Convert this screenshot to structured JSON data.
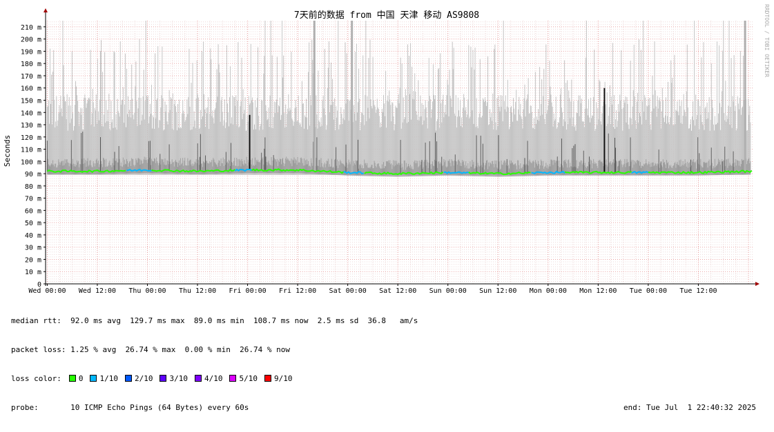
{
  "chart_data": {
    "type": "line",
    "title": "7天前的数据 from 中国 天津 移动 AS9808",
    "ylabel": "Seconds",
    "ylim": [
      0,
      215
    ],
    "y_ticks": [
      0,
      10,
      20,
      30,
      40,
      50,
      60,
      70,
      80,
      90,
      100,
      110,
      120,
      130,
      140,
      150,
      160,
      170,
      180,
      190,
      200,
      210
    ],
    "y_tick_labels": [
      "0",
      "10 m",
      "20 m",
      "30 m",
      "40 m",
      "50 m",
      "60 m",
      "70 m",
      "80 m",
      "90 m",
      "100 m",
      "110 m",
      "120 m",
      "130 m",
      "140 m",
      "150 m",
      "160 m",
      "170 m",
      "180 m",
      "190 m",
      "200 m",
      "210 m"
    ],
    "x_tick_labels": [
      "Wed 00:00",
      "Wed 12:00",
      "Thu 00:00",
      "Thu 12:00",
      "Fri 00:00",
      "Fri 12:00",
      "Sat 00:00",
      "Sat 12:00",
      "Sun 00:00",
      "Sun 12:00",
      "Mon 00:00",
      "Mon 12:00",
      "Tue 00:00",
      "Tue 12:00"
    ],
    "x_tick_hours": [
      0,
      12,
      24,
      36,
      48,
      60,
      72,
      84,
      96,
      108,
      120,
      132,
      144,
      156
    ],
    "x_range_hours": [
      -0.4,
      169
    ],
    "grid": true,
    "watermark": "RRDTOOL / TOBI OETIKER",
    "median_profile": [
      {
        "hour": 0,
        "value": 92
      },
      {
        "hour": 12,
        "value": 92
      },
      {
        "hour": 24,
        "value": 93
      },
      {
        "hour": 36,
        "value": 92
      },
      {
        "hour": 48,
        "value": 93
      },
      {
        "hour": 60,
        "value": 93
      },
      {
        "hour": 72,
        "value": 91
      },
      {
        "hour": 84,
        "value": 90
      },
      {
        "hour": 96,
        "value": 91
      },
      {
        "hour": 108,
        "value": 90
      },
      {
        "hour": 120,
        "value": 91
      },
      {
        "hour": 132,
        "value": 91
      },
      {
        "hour": 144,
        "value": 91
      },
      {
        "hour": 156,
        "value": 91
      },
      {
        "hour": 169,
        "value": 92
      }
    ],
    "smoke_band": {
      "min": 89,
      "typical_max": 140
    },
    "spikes": [
      {
        "hour": 48.5,
        "value": 138
      },
      {
        "hour": 133.5,
        "value": 160
      },
      {
        "hour": 167.2,
        "value": 215
      },
      {
        "hour": 64,
        "value": 215
      },
      {
        "hour": 73,
        "value": 215
      }
    ],
    "loss_color_segments": [
      {
        "from": 0,
        "to": 19,
        "loss": "0"
      },
      {
        "from": 19,
        "to": 25,
        "loss": "1/10"
      },
      {
        "from": 25,
        "to": 45,
        "loss": "0"
      },
      {
        "from": 45,
        "to": 49,
        "loss": "1/10"
      },
      {
        "from": 49,
        "to": 71,
        "loss": "0"
      },
      {
        "from": 71,
        "to": 76,
        "loss": "1/10"
      },
      {
        "from": 76,
        "to": 95,
        "loss": "0"
      },
      {
        "from": 95,
        "to": 101,
        "loss": "1/10"
      },
      {
        "from": 101,
        "to": 116,
        "loss": "0"
      },
      {
        "from": 116,
        "to": 124,
        "loss": "1/10"
      },
      {
        "from": 124,
        "to": 140,
        "loss": "0"
      },
      {
        "from": 140,
        "to": 144,
        "loss": "1/10"
      },
      {
        "from": 144,
        "to": 169,
        "loss": "0"
      }
    ],
    "legend": [
      {
        "name": "0",
        "color": "#26ff00"
      },
      {
        "name": "1/10",
        "color": "#00b8ff"
      },
      {
        "name": "2/10",
        "color": "#0059ff"
      },
      {
        "name": "3/10",
        "color": "#5e00ff"
      },
      {
        "name": "4/10",
        "color": "#7e00ff"
      },
      {
        "name": "5/10",
        "color": "#dd00ff"
      },
      {
        "name": "9/10",
        "color": "#ff0000"
      }
    ]
  },
  "stats": {
    "median_rtt": "median rtt:  92.0 ms avg  129.7 ms max  89.0 ms min  108.7 ms now  2.5 ms sd  36.8   am/s",
    "packet_loss": "packet loss: 1.25 % avg  26.74 % max  0.00 % min  26.74 % now",
    "loss_color_label": "loss color:",
    "probe": "probe:       10 ICMP Echo Pings (64 Bytes) every 60s",
    "end": "end: Tue Jul  1 22:40:32 2025"
  }
}
